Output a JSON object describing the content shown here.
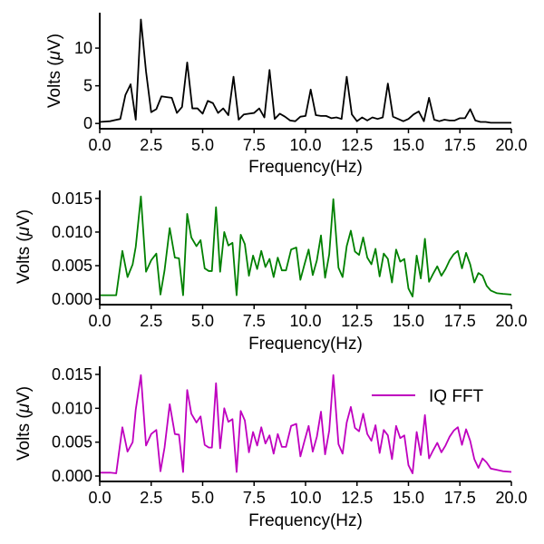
{
  "chart_data": [
    {
      "type": "line",
      "xlabel": "Frequency(Hz)",
      "ylabel_prefix": "Volts (",
      "ylabel_mu": "μ",
      "ylabel_suffix": "V)",
      "xlim": [
        0,
        20
      ],
      "ylim": [
        -0.7,
        14.7
      ],
      "xticks": [
        0,
        2.5,
        5,
        7.5,
        10,
        12.5,
        15,
        17.5,
        20
      ],
      "xtick_labels": [
        "0.0",
        "2.5",
        "5.0",
        "7.5",
        "10.0",
        "12.5",
        "15.0",
        "17.5",
        "20.0"
      ],
      "yticks": [
        0,
        5,
        10
      ],
      "ytick_labels": [
        "0",
        "5",
        "10"
      ],
      "grid": false,
      "series": [
        {
          "color": "#000000",
          "x": [
            0,
            0.5,
            1.0,
            1.25,
            1.5,
            1.75,
            2.0,
            2.25,
            2.5,
            2.75,
            3.0,
            3.25,
            3.5,
            3.75,
            4.0,
            4.25,
            4.5,
            4.75,
            5.0,
            5.25,
            5.5,
            5.75,
            6.0,
            6.25,
            6.5,
            6.75,
            7.0,
            7.25,
            7.5,
            7.75,
            8.0,
            8.25,
            8.5,
            8.75,
            9.0,
            9.25,
            9.5,
            9.75,
            10.0,
            10.25,
            10.5,
            10.75,
            11.0,
            11.25,
            11.5,
            11.75,
            12.0,
            12.25,
            12.5,
            12.75,
            13.0,
            13.25,
            13.5,
            13.75,
            14.0,
            14.25,
            14.5,
            14.75,
            15.0,
            15.25,
            15.5,
            15.75,
            16.0,
            16.25,
            16.5,
            16.75,
            17.0,
            17.25,
            17.5,
            17.75,
            18.0,
            18.25,
            18.5,
            18.75,
            19.0,
            19.5,
            20.0
          ],
          "y": [
            0.2,
            0.3,
            0.6,
            3.8,
            5.2,
            0.5,
            13.8,
            6.9,
            1.5,
            1.9,
            3.6,
            3.5,
            3.4,
            1.4,
            2.2,
            8.1,
            2.0,
            2.0,
            1.3,
            3.0,
            2.7,
            1.4,
            2.0,
            1.1,
            6.2,
            0.5,
            1.2,
            1.3,
            1.4,
            2.0,
            0.8,
            7.1,
            0.6,
            1.3,
            0.9,
            0.4,
            0.3,
            0.9,
            1.0,
            4.5,
            1.1,
            1.0,
            1.0,
            0.7,
            0.8,
            0.6,
            6.2,
            1.2,
            0.3,
            0.8,
            0.4,
            0.8,
            0.6,
            0.8,
            5.3,
            0.9,
            0.6,
            0.3,
            0.6,
            1.2,
            1.6,
            0.3,
            3.4,
            0.5,
            0.3,
            0.5,
            0.4,
            0.4,
            0.7,
            0.7,
            1.9,
            0.4,
            0.2,
            0.2,
            0.1,
            0.1,
            0.1
          ]
        }
      ]
    },
    {
      "type": "line",
      "xlabel": "Frequency(Hz)",
      "ylabel_prefix": "Volts (",
      "ylabel_mu": "μ",
      "ylabel_suffix": "V)",
      "xlim": [
        0,
        20
      ],
      "ylim": [
        -0.0008,
        0.0162
      ],
      "xticks": [
        0,
        2.5,
        5,
        7.5,
        10,
        12.5,
        15,
        17.5,
        20
      ],
      "xtick_labels": [
        "0.0",
        "2.5",
        "5.0",
        "7.5",
        "10.0",
        "12.5",
        "15.0",
        "17.5",
        "20.0"
      ],
      "yticks": [
        0,
        0.005,
        0.01,
        0.015
      ],
      "ytick_labels": [
        "0.000",
        "0.005",
        "0.010",
        "0.015"
      ],
      "grid": false,
      "series": [
        {
          "color": "#008000",
          "x": [
            0,
            0.5,
            0.8,
            1.1,
            1.35,
            1.6,
            1.75,
            2.0,
            2.25,
            2.5,
            2.75,
            2.95,
            3.15,
            3.4,
            3.65,
            3.85,
            4.05,
            4.25,
            4.45,
            4.7,
            4.9,
            5.1,
            5.3,
            5.45,
            5.65,
            5.85,
            6.05,
            6.25,
            6.45,
            6.65,
            6.85,
            7.05,
            7.25,
            7.45,
            7.65,
            7.85,
            8.05,
            8.25,
            8.45,
            8.65,
            8.85,
            9.05,
            9.3,
            9.55,
            9.75,
            9.95,
            10.15,
            10.35,
            10.55,
            10.75,
            10.95,
            11.15,
            11.35,
            11.6,
            11.8,
            12.0,
            12.2,
            12.4,
            12.6,
            12.8,
            13.0,
            13.2,
            13.4,
            13.6,
            13.8,
            14.0,
            14.2,
            14.4,
            14.6,
            14.8,
            15.0,
            15.2,
            15.4,
            15.6,
            15.8,
            16.0,
            16.2,
            16.4,
            16.6,
            16.8,
            17.0,
            17.2,
            17.4,
            17.6,
            17.8,
            18.0,
            18.2,
            18.4,
            18.6,
            18.8,
            19.0,
            19.3,
            19.6,
            20.0
          ],
          "y": [
            0.0006,
            0.0006,
            0.0006,
            0.0072,
            0.0033,
            0.0052,
            0.0078,
            0.0153,
            0.0041,
            0.0058,
            0.0068,
            0.0007,
            0.0043,
            0.0106,
            0.0062,
            0.0061,
            0.0006,
            0.0127,
            0.0092,
            0.0079,
            0.0088,
            0.0046,
            0.0042,
            0.0042,
            0.0137,
            0.0041,
            0.01,
            0.008,
            0.0084,
            0.0006,
            0.0096,
            0.0082,
            0.0035,
            0.0065,
            0.0045,
            0.0072,
            0.0048,
            0.006,
            0.0033,
            0.0062,
            0.0043,
            0.0043,
            0.0074,
            0.0077,
            0.0029,
            0.0052,
            0.0074,
            0.0036,
            0.0058,
            0.0095,
            0.0032,
            0.0067,
            0.0149,
            0.0047,
            0.0033,
            0.0079,
            0.0102,
            0.0071,
            0.0066,
            0.0092,
            0.0062,
            0.0052,
            0.0075,
            0.0034,
            0.0068,
            0.006,
            0.0025,
            0.0074,
            0.0056,
            0.006,
            0.0016,
            0.0004,
            0.0065,
            0.0031,
            0.009,
            0.0026,
            0.0038,
            0.0049,
            0.0035,
            0.0045,
            0.0058,
            0.0067,
            0.0072,
            0.0046,
            0.0069,
            0.0052,
            0.0025,
            0.0039,
            0.0035,
            0.002,
            0.0013,
            0.0009,
            0.0008,
            0.0007
          ]
        }
      ]
    },
    {
      "type": "line",
      "xlabel": "Frequency(Hz)",
      "ylabel_prefix": "Volts (",
      "ylabel_mu": "μ",
      "ylabel_suffix": "V)",
      "xlim": [
        0,
        20
      ],
      "ylim": [
        -0.0008,
        0.0162
      ],
      "xticks": [
        0,
        2.5,
        5,
        7.5,
        10,
        12.5,
        15,
        17.5,
        20
      ],
      "xtick_labels": [
        "0.0",
        "2.5",
        "5.0",
        "7.5",
        "10.0",
        "12.5",
        "15.0",
        "17.5",
        "20.0"
      ],
      "yticks": [
        0,
        0.005,
        0.01,
        0.015
      ],
      "ytick_labels": [
        "0.000",
        "0.005",
        "0.010",
        "0.015"
      ],
      "grid": false,
      "legend_position": "upper-right",
      "series": [
        {
          "name": "IQ FFT",
          "color": "#bf00bf",
          "x": [
            0,
            0.5,
            0.8,
            1.1,
            1.35,
            1.6,
            1.75,
            2.0,
            2.25,
            2.5,
            2.75,
            2.95,
            3.15,
            3.4,
            3.65,
            3.85,
            4.05,
            4.25,
            4.45,
            4.7,
            4.9,
            5.1,
            5.3,
            5.45,
            5.65,
            5.85,
            6.05,
            6.25,
            6.45,
            6.65,
            6.85,
            7.05,
            7.25,
            7.45,
            7.65,
            7.85,
            8.05,
            8.25,
            8.45,
            8.65,
            8.85,
            9.05,
            9.3,
            9.55,
            9.75,
            9.95,
            10.15,
            10.35,
            10.55,
            10.75,
            10.95,
            11.15,
            11.35,
            11.6,
            11.8,
            12.0,
            12.2,
            12.4,
            12.6,
            12.8,
            13.0,
            13.2,
            13.4,
            13.6,
            13.8,
            14.0,
            14.2,
            14.4,
            14.6,
            14.8,
            15.0,
            15.2,
            15.4,
            15.6,
            15.8,
            16.0,
            16.2,
            16.4,
            16.6,
            16.8,
            17.0,
            17.2,
            17.4,
            17.6,
            17.8,
            18.0,
            18.2,
            18.4,
            18.6,
            18.8,
            19.0,
            19.3,
            19.6,
            20.0
          ],
          "y": [
            0.0005,
            0.0005,
            0.0004,
            0.0072,
            0.0036,
            0.005,
            0.0098,
            0.0149,
            0.0045,
            0.0062,
            0.0068,
            0.0007,
            0.0042,
            0.0106,
            0.0062,
            0.0061,
            0.0006,
            0.0127,
            0.0092,
            0.0079,
            0.0088,
            0.0046,
            0.0042,
            0.0042,
            0.0137,
            0.0041,
            0.01,
            0.008,
            0.0084,
            0.0006,
            0.0096,
            0.0082,
            0.0035,
            0.0065,
            0.0045,
            0.0072,
            0.0048,
            0.006,
            0.0033,
            0.0062,
            0.0043,
            0.0043,
            0.0074,
            0.0077,
            0.0029,
            0.0052,
            0.0074,
            0.0036,
            0.0058,
            0.0095,
            0.0032,
            0.0067,
            0.0149,
            0.0047,
            0.0033,
            0.0079,
            0.0102,
            0.0071,
            0.0066,
            0.0092,
            0.0062,
            0.0052,
            0.0075,
            0.0034,
            0.0068,
            0.006,
            0.0025,
            0.0074,
            0.0056,
            0.006,
            0.0016,
            0.0004,
            0.0065,
            0.0031,
            0.009,
            0.0026,
            0.0038,
            0.0049,
            0.0035,
            0.0045,
            0.0058,
            0.0067,
            0.0072,
            0.0046,
            0.0069,
            0.0052,
            0.0025,
            0.0012,
            0.0026,
            0.002,
            0.0011,
            0.0009,
            0.0007,
            0.0006
          ]
        }
      ]
    }
  ]
}
